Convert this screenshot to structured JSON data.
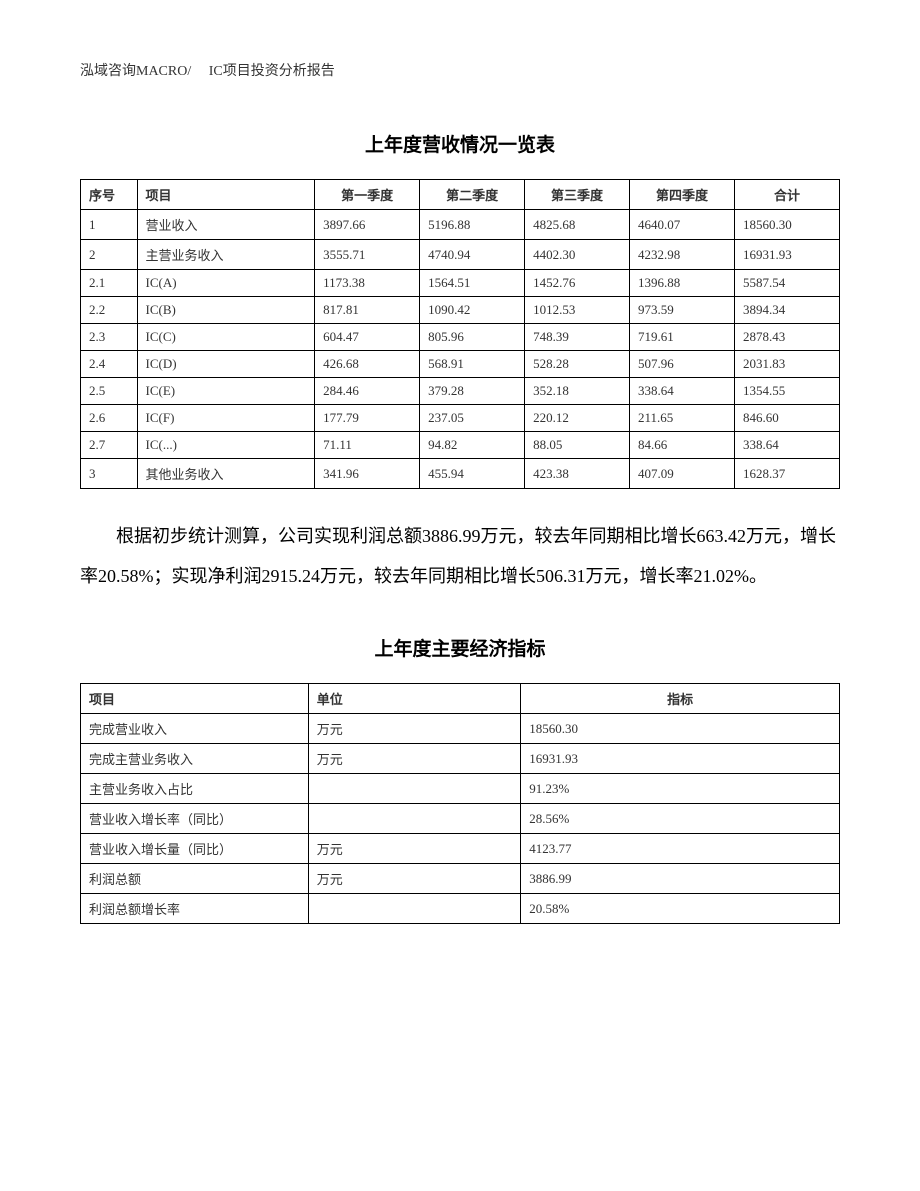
{
  "header": "泓域咨询MACRO/　 IC项目投资分析报告",
  "table1": {
    "title": "上年度营收情况一览表",
    "columns": [
      "序号",
      "项目",
      "第一季度",
      "第二季度",
      "第三季度",
      "第四季度",
      "合计"
    ],
    "rows": [
      [
        "1",
        "营业收入",
        "3897.66",
        "5196.88",
        "4825.68",
        "4640.07",
        "18560.30"
      ],
      [
        "2",
        "主营业务收入",
        "3555.71",
        "4740.94",
        "4402.30",
        "4232.98",
        "16931.93"
      ],
      [
        "2.1",
        "IC(A)",
        "1173.38",
        "1564.51",
        "1452.76",
        "1396.88",
        "5587.54"
      ],
      [
        "2.2",
        "IC(B)",
        "817.81",
        "1090.42",
        "1012.53",
        "973.59",
        "3894.34"
      ],
      [
        "2.3",
        "IC(C)",
        "604.47",
        "805.96",
        "748.39",
        "719.61",
        "2878.43"
      ],
      [
        "2.4",
        "IC(D)",
        "426.68",
        "568.91",
        "528.28",
        "507.96",
        "2031.83"
      ],
      [
        "2.5",
        "IC(E)",
        "284.46",
        "379.28",
        "352.18",
        "338.64",
        "1354.55"
      ],
      [
        "2.6",
        "IC(F)",
        "177.79",
        "237.05",
        "220.12",
        "211.65",
        "846.60"
      ],
      [
        "2.7",
        "IC(...)",
        "71.11",
        "94.82",
        "88.05",
        "84.66",
        "338.64"
      ],
      [
        "3",
        "其他业务收入",
        "341.96",
        "455.94",
        "423.38",
        "407.09",
        "1628.37"
      ]
    ]
  },
  "paragraph": "根据初步统计测算，公司实现利润总额3886.99万元，较去年同期相比增长663.42万元，增长率20.58%；实现净利润2915.24万元，较去年同期相比增长506.31万元，增长率21.02%。",
  "table2": {
    "title": "上年度主要经济指标",
    "columns": [
      "项目",
      "单位",
      "指标"
    ],
    "rows": [
      [
        "完成营业收入",
        "万元",
        "18560.30"
      ],
      [
        "完成主营业务收入",
        "万元",
        "16931.93"
      ],
      [
        "主营业务收入占比",
        "",
        "91.23%"
      ],
      [
        "营业收入增长率（同比）",
        "",
        "28.56%"
      ],
      [
        "营业收入增长量（同比）",
        "万元",
        "4123.77"
      ],
      [
        "利润总额",
        "万元",
        "3886.99"
      ],
      [
        "利润总额增长率",
        "",
        "20.58%"
      ]
    ]
  }
}
